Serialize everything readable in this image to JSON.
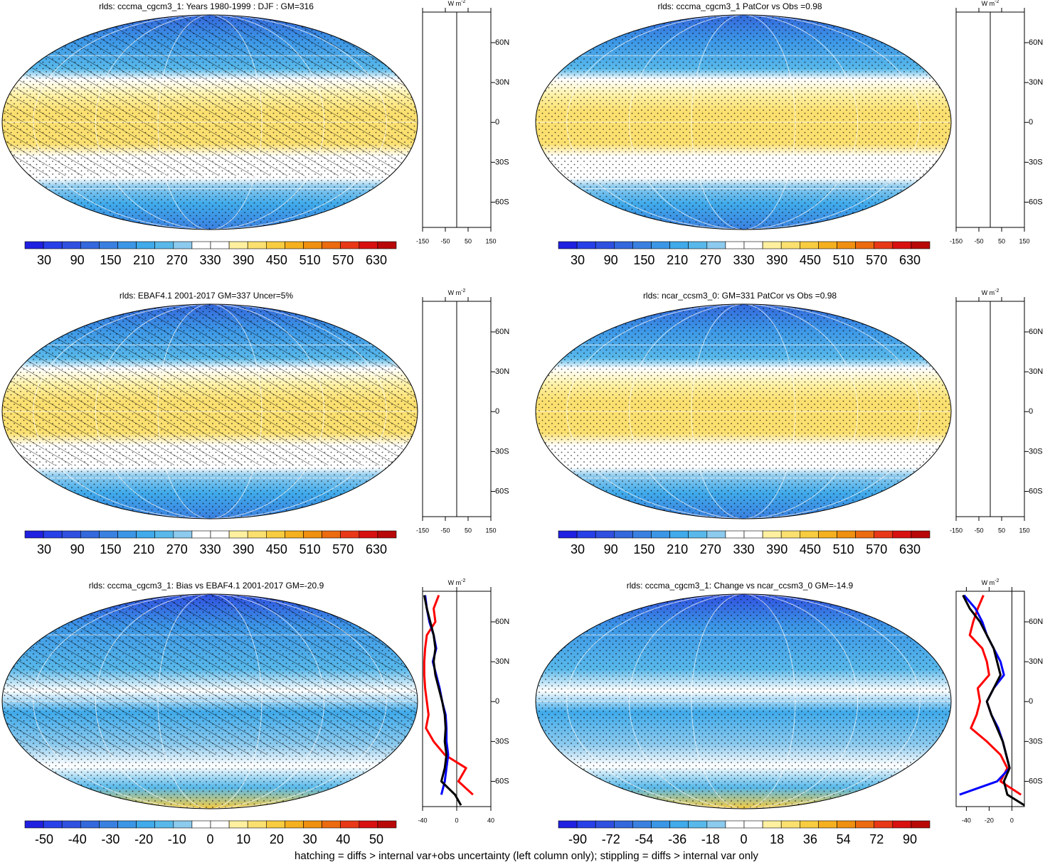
{
  "colorbar_colors": [
    "#2020e0",
    "#2840e8",
    "#3050e0",
    "#3468dc",
    "#3a80e0",
    "#3c96e6",
    "#40aaea",
    "#58b8ea",
    "#8ccaee",
    "#ffffff",
    "#ffffff",
    "#fff0a0",
    "#fbe070",
    "#f8cc40",
    "#f5b020",
    "#f09010",
    "#ec6a10",
    "#e83818",
    "#d81010",
    "#b80808"
  ],
  "panels": [
    {
      "title": "rlds: cccma_cgcm3_1: Years 1980-1999 : DJF : GM=316",
      "map": "warm",
      "hatch": true,
      "colorbar": [
        30,
        90,
        150,
        210,
        270,
        330,
        390,
        450,
        510,
        570,
        630
      ],
      "zonal": {
        "type": "line",
        "unit": "W m",
        "unit_exp": "-2",
        "xlim": [
          -150,
          150
        ],
        "xticks": [
          -150,
          -50,
          50,
          150
        ],
        "ylim": [
          -79,
          83
        ],
        "yticks": [
          {
            "value": 60,
            "label": "60N"
          },
          {
            "value": 30,
            "label": "30N"
          },
          0,
          {
            "value": -30,
            "label": "30S"
          },
          {
            "value": -60,
            "label": "60S"
          }
        ]
      }
    },
    {
      "title": "rlds: cccma_cgcm3_1 PatCor vs Obs =0.98",
      "map": "warm",
      "hatch": false,
      "colorbar": [
        30,
        90,
        150,
        210,
        270,
        330,
        390,
        450,
        510,
        570,
        630
      ],
      "zonal": {
        "type": "line",
        "unit": "W m",
        "unit_exp": "-2",
        "xlim": [
          -150,
          150
        ],
        "xticks": [
          -150,
          -50,
          50,
          150
        ],
        "ylim": [
          -79,
          83
        ],
        "yticks": [
          {
            "value": 60,
            "label": "60N"
          },
          {
            "value": 30,
            "label": "30N"
          },
          0,
          {
            "value": -30,
            "label": "30S"
          },
          {
            "value": -60,
            "label": "60S"
          }
        ]
      }
    },
    {
      "title": "rlds: EBAF4.1 2001-2017 GM=337 Uncer=5%",
      "map": "warm",
      "hatch": true,
      "colorbar": [
        30,
        90,
        150,
        210,
        270,
        330,
        390,
        450,
        510,
        570,
        630
      ],
      "zonal": {
        "type": "line",
        "unit": "W m",
        "unit_exp": "-2",
        "xlim": [
          -150,
          150
        ],
        "xticks": [
          -150,
          -50,
          50,
          150
        ],
        "ylim": [
          -79,
          83
        ],
        "yticks": [
          {
            "value": 60,
            "label": "60N"
          },
          {
            "value": 30,
            "label": "30N"
          },
          0,
          {
            "value": -30,
            "label": "30S"
          },
          {
            "value": -60,
            "label": "60S"
          }
        ]
      }
    },
    {
      "title": "rlds: ncar_ccsm3_0: GM=331 PatCor vs Obs =0.98",
      "map": "warm",
      "hatch": false,
      "colorbar": [
        30,
        90,
        150,
        210,
        270,
        330,
        390,
        450,
        510,
        570,
        630
      ],
      "zonal": {
        "type": "line",
        "unit": "W m",
        "unit_exp": "-2",
        "xlim": [
          -150,
          150
        ],
        "xticks": [
          -150,
          -50,
          50,
          150
        ],
        "ylim": [
          -79,
          83
        ],
        "yticks": [
          {
            "value": 60,
            "label": "60N"
          },
          {
            "value": 30,
            "label": "30N"
          },
          0,
          {
            "value": -30,
            "label": "30S"
          },
          {
            "value": -60,
            "label": "60S"
          }
        ]
      }
    },
    {
      "title": "rlds: cccma_cgcm3_1: Bias vs EBAF4.1 2001-2017 GM=-20.9",
      "map": "bias",
      "hatch": true,
      "colorbar": [
        -50,
        -40,
        -30,
        -20,
        -10,
        0,
        10,
        20,
        30,
        40,
        50
      ],
      "zonal": {
        "type": "line",
        "unit": "W m",
        "unit_exp": "-2",
        "xlim": [
          -40,
          40
        ],
        "xticks": [
          -40,
          0,
          40
        ],
        "ylim": [
          -79,
          83
        ],
        "yticks": [
          {
            "value": 60,
            "label": "60N"
          },
          {
            "value": 30,
            "label": "30N"
          },
          0,
          {
            "value": -30,
            "label": "30S"
          },
          {
            "value": -60,
            "label": "60S"
          }
        ],
        "lat": [
          80,
          70,
          60,
          50,
          40,
          30,
          20,
          10,
          0,
          -10,
          -20,
          -30,
          -40,
          -50,
          -60,
          -70,
          -78
        ],
        "series": [
          {
            "color": "#ff0000",
            "values": [
              -21,
              -27,
              -25,
              -35,
              -37,
              -38,
              -38,
              -37,
              -35,
              -33,
              -36,
              -27,
              -14,
              11,
              2,
              19,
              null
            ]
          },
          {
            "color": "#0000ff",
            "values": [
              -37,
              -35,
              -32,
              -27,
              -24,
              -28,
              -24,
              -20,
              -17,
              -13,
              -12,
              -12,
              -10,
              -12,
              -14,
              -18,
              null
            ]
          },
          {
            "color": "#000000",
            "values": [
              -38,
              -35,
              -31,
              -27,
              -25,
              -27,
              -25,
              -21,
              -17,
              -14,
              -13,
              -14,
              -12,
              -14,
              -18,
              -2,
              5
            ]
          }
        ]
      }
    },
    {
      "title": "rlds: cccma_cgcm3_1: Change vs ncar_ccsm3_0 GM=-14.9",
      "map": "bias",
      "hatch": false,
      "colorbar": [
        -90,
        -72,
        -54,
        -36,
        -18,
        0,
        18,
        36,
        54,
        72,
        90
      ],
      "zonal": {
        "type": "line",
        "unit": "W m",
        "unit_exp": "-2",
        "xlim": [
          -49,
          11
        ],
        "xticks": [
          -40,
          -20,
          0
        ],
        "ylim": [
          -79,
          83
        ],
        "yticks": [
          {
            "value": 60,
            "label": "60N"
          },
          {
            "value": 30,
            "label": "30N"
          },
          0,
          {
            "value": -30,
            "label": "30S"
          },
          {
            "value": -60,
            "label": "60S"
          }
        ],
        "lat": [
          80,
          70,
          60,
          50,
          40,
          30,
          20,
          10,
          0,
          -10,
          -20,
          -30,
          -40,
          -50,
          -60,
          -70,
          -78
        ],
        "series": [
          {
            "color": "#ff0000",
            "values": [
              -25,
              -30,
              -34,
              -37,
              -26,
              -22,
              -20,
              -30,
              -28,
              -31,
              -36,
              -22,
              -10,
              -4,
              -10,
              8,
              null
            ]
          },
          {
            "color": "#0000ff",
            "values": [
              -42,
              -32,
              -26,
              -22,
              -16,
              -10,
              -7,
              -16,
              -22,
              -18,
              -12,
              -8,
              -5,
              -2,
              -13,
              -46,
              null
            ]
          },
          {
            "color": "#000000",
            "values": [
              -43,
              -37,
              -28,
              -22,
              -16,
              -13,
              -10,
              -16,
              -22,
              -18,
              -13,
              -8,
              -5,
              -2,
              -7,
              -4,
              11
            ]
          }
        ]
      }
    }
  ],
  "footnote": "hatching = diffs > internal var+obs uncertainty (left column only); stippling = diffs > internal var only"
}
